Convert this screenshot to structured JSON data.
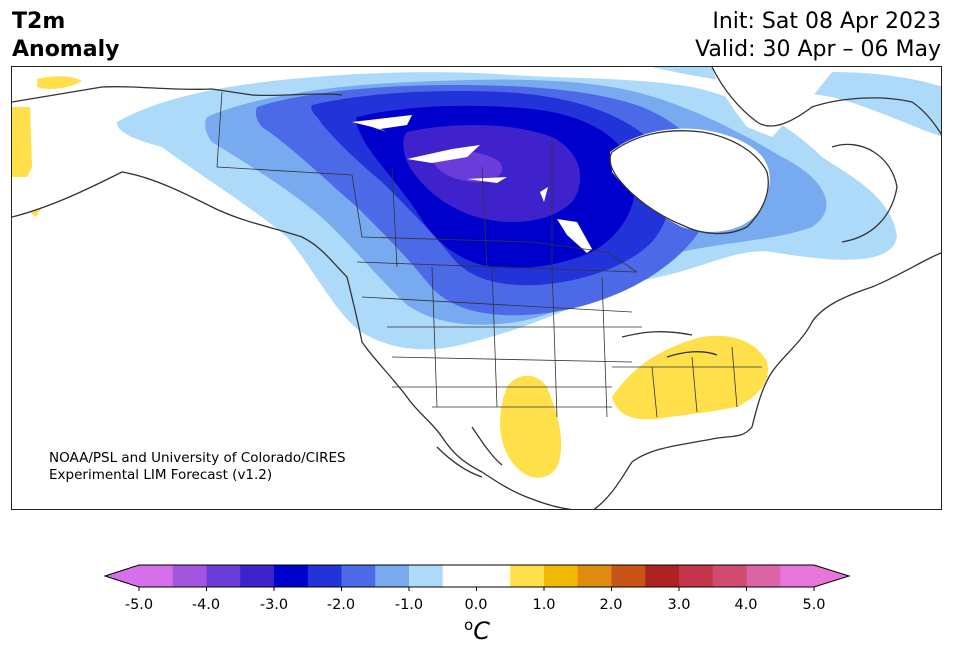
{
  "header": {
    "title_line1": "T2m",
    "title_line2": "Anomaly",
    "init": "Init: Sat 08 Apr 2023",
    "valid": "Valid: 30 Apr – 06 May"
  },
  "credit": {
    "line1": "NOAA/PSL and University of Colorado/CIRES",
    "line2": "Experimental LIM Forecast (v1.2)"
  },
  "colorbar": {
    "ticks": [
      "-5.0",
      "-4.0",
      "-3.0",
      "-2.0",
      "-1.0",
      "0.0",
      "1.0",
      "2.0",
      "3.0",
      "4.0",
      "5.0"
    ],
    "unit_base": "C",
    "unit_sup": "o",
    "colors": [
      "#d670ea",
      "#a455e0",
      "#6a3ddb",
      "#3f22cc",
      "#0000cd",
      "#2233d9",
      "#4c6ae8",
      "#78aaf0",
      "#aedafa",
      "#ffffff",
      "#ffffff",
      "#ffe04a",
      "#f2b800",
      "#e08a10",
      "#c85516",
      "#ad2222",
      "#c2354a",
      "#d04a72",
      "#dd62a6",
      "#e776d8"
    ],
    "extend_low": "#d670ea",
    "extend_high": "#e776d8"
  },
  "map": {
    "ocean": "#ffffff",
    "coast": "#333333"
  }
}
